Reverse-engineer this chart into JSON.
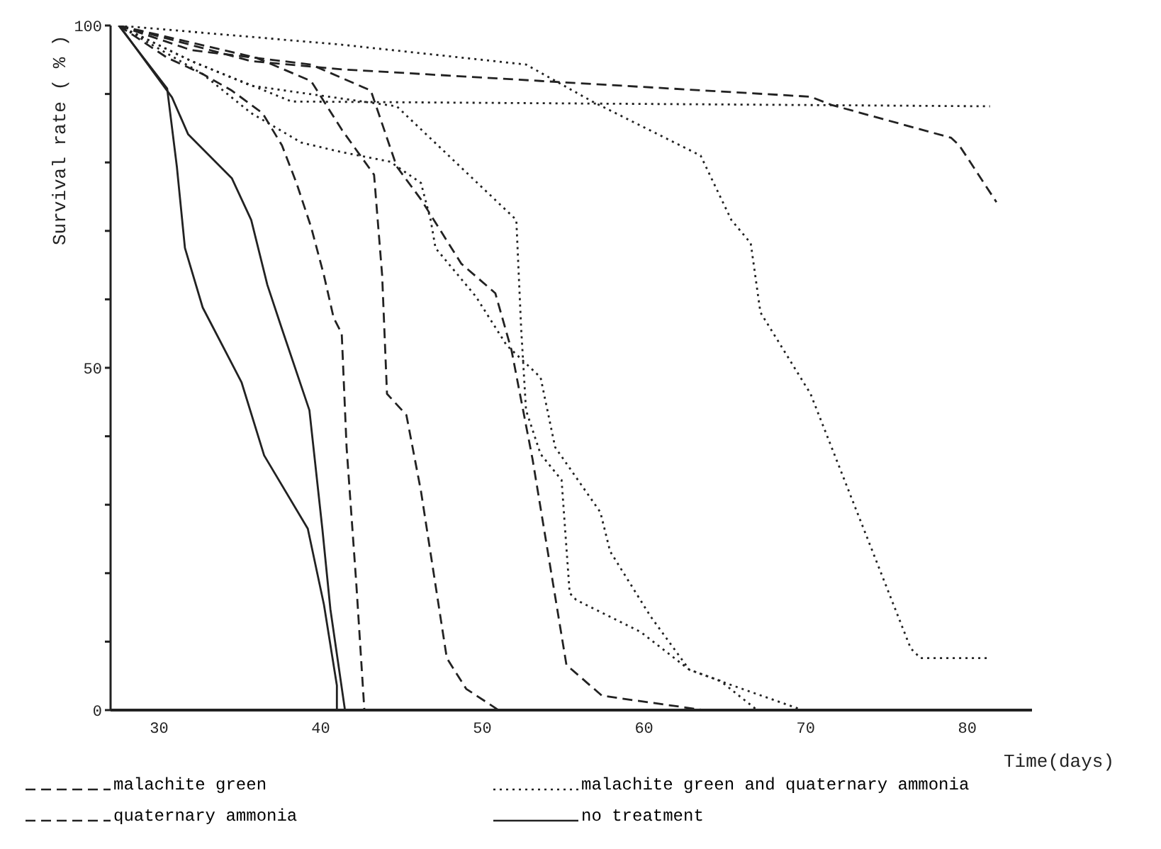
{
  "chart_data": {
    "type": "line",
    "xlabel": "Time(days)",
    "ylabel": "Survival rate ( % )",
    "xlim": [
      27,
      84
    ],
    "xticks": [
      30,
      40,
      50,
      60,
      70,
      80
    ],
    "ylim": [
      0,
      100
    ],
    "yticks": [
      0,
      {
        "value": 10,
        "label": null
      },
      {
        "value": 20,
        "label": null
      },
      {
        "value": 30,
        "label": null
      },
      {
        "value": 40,
        "label": null
      },
      50,
      {
        "value": 60,
        "label": null
      },
      {
        "value": 70,
        "label": null
      },
      {
        "value": 80,
        "label": null
      },
      {
        "value": 90,
        "label": null
      },
      100
    ],
    "grid": false,
    "legend": "bottom",
    "marker": "none",
    "series": [
      {
        "name": "malachite green",
        "color": "#222222",
        "line_style": "dashed",
        "x": [
          27.5,
          30.5,
          32.7,
          34.5,
          36.4,
          37.6,
          38.5,
          39.4,
          40.2,
          40.8,
          41.3,
          41.6,
          42.2,
          42.7
        ],
        "values": [
          100,
          95.3,
          92.9,
          90.5,
          87.2,
          82.5,
          77,
          70.6,
          63.5,
          57.3,
          55,
          38.4,
          18.5,
          0
        ]
      },
      {
        "name": "malachite green and quaternary ammonia",
        "color": "#222222",
        "line_style": "dotted",
        "x": [
          27.5,
          41.3,
          52.7,
          56.8,
          63.5,
          65.4,
          66.6,
          67.2,
          70.3,
          76.5,
          77.1,
          81.4
        ],
        "values": [
          100,
          97.2,
          94.3,
          88.9,
          81,
          71.6,
          68.2,
          58.1,
          46.2,
          9,
          7.6,
          7.6
        ]
      },
      {
        "name": "quaternary ammonia",
        "color": "#222222",
        "line_style": "dashed",
        "x": [
          27.5,
          36,
          39.4,
          41.3,
          43.3,
          43.8,
          44.1,
          45.3,
          46.2,
          47.8,
          49,
          51
        ],
        "values": [
          100,
          95.3,
          91.9,
          84.8,
          78.2,
          63.5,
          46.2,
          43.1,
          32,
          7.6,
          3.1,
          0
        ]
      },
      {
        "name": "no treatment",
        "color": "#222222",
        "line_style": "solid",
        "x": [
          27.5,
          30.5,
          31.1,
          31.6,
          32.7,
          35.1,
          36.5,
          39.2,
          40.2,
          41,
          41
        ],
        "values": [
          100,
          90.8,
          79.4,
          67.5,
          58.8,
          47.9,
          37.2,
          26.5,
          15.4,
          3.6,
          0
        ]
      },
      {
        "color": "#222222",
        "line_style": "dashed",
        "x": [
          27.5,
          35.7,
          41.3,
          53.6,
          70.3,
          71.6,
          79,
          79.5,
          81.8
        ],
        "values": [
          100,
          94.8,
          93.6,
          91.9,
          89.6,
          88.4,
          83.6,
          82.5,
          74.2
        ]
      },
      {
        "color": "#222222",
        "line_style": "dotted",
        "x": [
          27.5,
          32,
          38.2,
          81.4
        ],
        "values": [
          100,
          94.8,
          88.9,
          88.2
        ]
      },
      {
        "color": "#222222",
        "line_style": "dotted",
        "x": [
          27.5,
          32.7,
          35.7,
          38.8,
          41.3,
          44.3,
          46.2,
          46.8,
          47.1,
          49.6,
          51.5,
          53.6,
          54.5,
          57.3,
          57.9,
          60.4,
          62.8,
          64.7,
          67
        ],
        "values": [
          100,
          92.9,
          87.2,
          82.9,
          81.5,
          80.1,
          77,
          71.6,
          67.5,
          60.4,
          53.3,
          48.6,
          38.4,
          28.9,
          23.2,
          13.7,
          5.9,
          4.3,
          0
        ]
      },
      {
        "color": "#222222",
        "line_style": "dotted",
        "x": [
          27.5,
          32,
          35.7,
          44.7,
          52.1,
          52.4,
          52.7,
          53.6,
          54.9,
          55.4,
          55.8,
          59.8,
          62.8,
          65,
          69.8
        ],
        "values": [
          100,
          94.8,
          91.2,
          88.2,
          71.6,
          55.7,
          43.8,
          37.4,
          33.6,
          17.1,
          16.1,
          11.4,
          5.9,
          4,
          0
        ]
      },
      {
        "color": "#222222",
        "line_style": "dashed",
        "x": [
          27.5,
          32,
          39.4,
          43.1,
          44.7,
          46.2,
          48.7,
          50.8,
          51.8,
          53.1,
          55.2,
          57.4,
          63.7
        ],
        "values": [
          100,
          96.4,
          94.3,
          90.5,
          79.4,
          74.6,
          65.2,
          60.9,
          52.6,
          36.7,
          6.6,
          2.1,
          0
        ]
      },
      {
        "color": "#222222",
        "line_style": "solid",
        "x": [
          27.7,
          30.8,
          31.8,
          34.5,
          35.7,
          36.7,
          37.6,
          39.3,
          40.1,
          40.6,
          41.5
        ],
        "values": [
          99.5,
          89.5,
          84.1,
          77.7,
          71.6,
          62.1,
          55.7,
          43.8,
          26.5,
          14.7,
          0
        ]
      }
    ]
  }
}
